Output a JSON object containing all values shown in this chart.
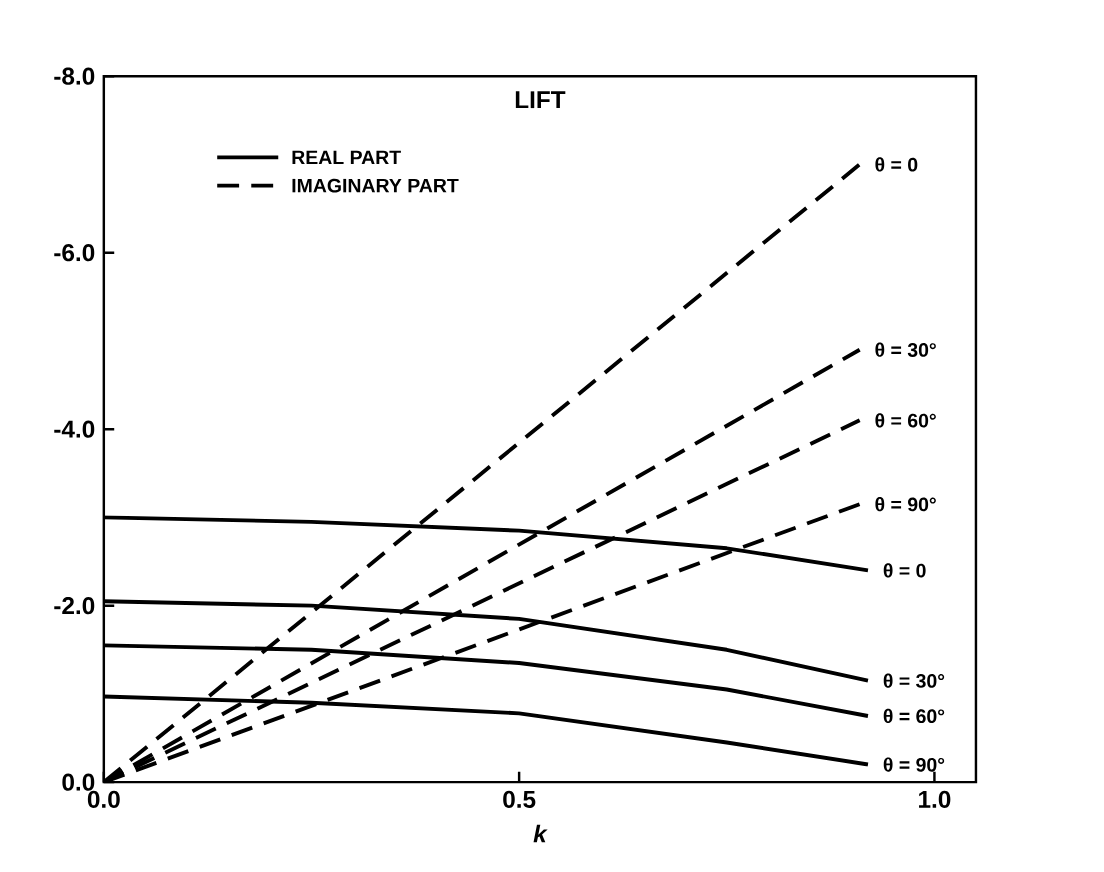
{
  "chart_data": {
    "type": "line",
    "title": "LIFT",
    "xlabel": "k",
    "xlim": [
      0,
      1.05
    ],
    "ylim": [
      0,
      -8
    ],
    "xticks": [
      {
        "value": 0,
        "label": "0.0"
      },
      {
        "value": 0.5,
        "label": "0.5"
      },
      {
        "value": 1.0,
        "label": "1.0"
      }
    ],
    "yticks": [
      {
        "value": 0,
        "label": "0.0"
      },
      {
        "value": -2,
        "label": "-2.0"
      },
      {
        "value": -4,
        "label": "-4.0"
      },
      {
        "value": -6,
        "label": "-6.0"
      },
      {
        "value": -8,
        "label": "-8.0"
      }
    ],
    "annotations": [
      "REAL PART",
      "IMAGINARY PART"
    ],
    "marker": "none",
    "series": [
      {
        "name": "θ = 0",
        "color": "#000000",
        "line_style": "solid",
        "x": [
          0,
          0.25,
          0.5,
          0.75,
          0.92
        ],
        "values": [
          -3.0,
          -2.95,
          -2.85,
          -2.65,
          -2.4
        ]
      },
      {
        "name": "θ = 30°",
        "color": "#000000",
        "line_style": "solid",
        "x": [
          0,
          0.25,
          0.5,
          0.75,
          0.92
        ],
        "values": [
          -2.05,
          -2.0,
          -1.85,
          -1.5,
          -1.15
        ]
      },
      {
        "name": "θ = 60°",
        "color": "#000000",
        "line_style": "solid",
        "x": [
          0,
          0.25,
          0.5,
          0.75,
          0.92
        ],
        "values": [
          -1.55,
          -1.5,
          -1.35,
          -1.05,
          -0.75
        ]
      },
      {
        "name": "θ = 90°",
        "color": "#000000",
        "line_style": "solid",
        "x": [
          0,
          0.25,
          0.5,
          0.75,
          0.92
        ],
        "values": [
          -0.97,
          -0.9,
          -0.78,
          -0.45,
          -0.2
        ]
      },
      {
        "name": "θ = 0",
        "color": "#000000",
        "line_style": "dashed",
        "x": [
          0,
          0.91
        ],
        "values": [
          0,
          -7.0
        ]
      },
      {
        "name": "θ = 30°",
        "color": "#000000",
        "line_style": "dashed",
        "x": [
          0,
          0.91
        ],
        "values": [
          0,
          -4.9
        ]
      },
      {
        "name": "θ = 60°",
        "color": "#000000",
        "line_style": "dashed",
        "x": [
          0,
          0.91
        ],
        "values": [
          0,
          -4.1
        ]
      },
      {
        "name": "θ = 90°",
        "color": "#000000",
        "line_style": "dashed",
        "x": [
          0,
          0.91
        ],
        "values": [
          0,
          -3.15
        ]
      }
    ]
  }
}
